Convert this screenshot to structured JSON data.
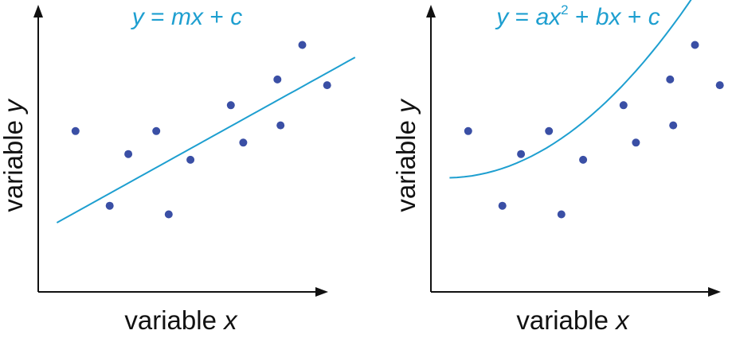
{
  "chart_data": [
    {
      "type": "scatter",
      "title_parts": [
        "y",
        " = ",
        "mx",
        " + ",
        "c"
      ],
      "xlabel_parts": [
        "variable ",
        "x"
      ],
      "ylabel_parts": [
        "variable ",
        "y"
      ],
      "xlim": [
        0,
        10
      ],
      "ylim": [
        0,
        10
      ],
      "grid": false,
      "points": [
        {
          "x": 1.2,
          "y": 5.6
        },
        {
          "x": 2.3,
          "y": 3.0
        },
        {
          "x": 2.9,
          "y": 4.8
        },
        {
          "x": 3.8,
          "y": 5.6
        },
        {
          "x": 4.2,
          "y": 2.7
        },
        {
          "x": 4.9,
          "y": 4.6
        },
        {
          "x": 6.2,
          "y": 6.5
        },
        {
          "x": 6.6,
          "y": 5.2
        },
        {
          "x": 7.7,
          "y": 7.4
        },
        {
          "x": 7.8,
          "y": 5.8
        },
        {
          "x": 8.5,
          "y": 8.6
        },
        {
          "x": 9.3,
          "y": 7.2
        }
      ],
      "fit": {
        "kind": "linear",
        "m": 0.6,
        "c": 2.05,
        "x_range": [
          0.6,
          10.2
        ]
      }
    },
    {
      "type": "scatter",
      "title_parts": [
        "y",
        " = ",
        "ax",
        "2",
        " + ",
        "bx",
        " + ",
        "c"
      ],
      "xlabel_parts": [
        "variable ",
        "x"
      ],
      "ylabel_parts": [
        "variable ",
        "y"
      ],
      "xlim": [
        0,
        10
      ],
      "ylim": [
        0,
        10
      ],
      "grid": false,
      "points": [
        {
          "x": 1.2,
          "y": 5.6
        },
        {
          "x": 2.3,
          "y": 3.0
        },
        {
          "x": 2.9,
          "y": 4.8
        },
        {
          "x": 3.8,
          "y": 5.6
        },
        {
          "x": 4.2,
          "y": 2.7
        },
        {
          "x": 4.9,
          "y": 4.6
        },
        {
          "x": 6.2,
          "y": 6.5
        },
        {
          "x": 6.6,
          "y": 5.2
        },
        {
          "x": 7.7,
          "y": 7.4
        },
        {
          "x": 7.8,
          "y": 5.8
        },
        {
          "x": 8.5,
          "y": 8.6
        },
        {
          "x": 9.3,
          "y": 7.2
        }
      ],
      "fit": {
        "kind": "quadratic",
        "a": 0.1,
        "b": -0.1,
        "c": 4.0,
        "x_range": [
          0.6,
          10.2
        ]
      }
    }
  ],
  "colors": {
    "accent": "#1e9fd0",
    "points": "#3a4fa5",
    "axes": "#111111"
  }
}
